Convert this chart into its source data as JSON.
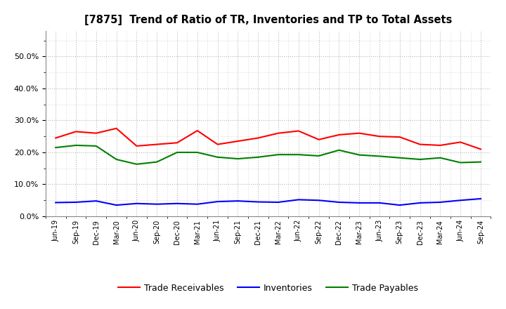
{
  "title": "[7875]  Trend of Ratio of TR, Inventories and TP to Total Assets",
  "labels": [
    "Jun-19",
    "Sep-19",
    "Dec-19",
    "Mar-20",
    "Jun-20",
    "Sep-20",
    "Dec-20",
    "Mar-21",
    "Jun-21",
    "Sep-21",
    "Dec-21",
    "Mar-22",
    "Jun-22",
    "Sep-22",
    "Dec-22",
    "Mar-23",
    "Jun-23",
    "Sep-23",
    "Dec-23",
    "Mar-24",
    "Jun-24",
    "Sep-24"
  ],
  "trade_receivables": [
    0.245,
    0.265,
    0.26,
    0.275,
    0.22,
    0.225,
    0.23,
    0.268,
    0.225,
    0.235,
    0.245,
    0.26,
    0.267,
    0.24,
    0.255,
    0.26,
    0.25,
    0.248,
    0.225,
    0.222,
    0.232,
    0.21
  ],
  "inventories": [
    0.043,
    0.044,
    0.048,
    0.035,
    0.04,
    0.038,
    0.04,
    0.038,
    0.046,
    0.048,
    0.045,
    0.044,
    0.052,
    0.05,
    0.044,
    0.042,
    0.042,
    0.035,
    0.042,
    0.044,
    0.05,
    0.055
  ],
  "trade_payables": [
    0.215,
    0.222,
    0.22,
    0.178,
    0.163,
    0.17,
    0.2,
    0.2,
    0.185,
    0.18,
    0.185,
    0.193,
    0.193,
    0.189,
    0.207,
    0.192,
    0.188,
    0.183,
    0.178,
    0.183,
    0.168,
    0.17
  ],
  "tr_color": "#ff0000",
  "inv_color": "#0000ff",
  "tp_color": "#008000",
  "background_color": "#ffffff",
  "plot_bg_color": "#ffffff",
  "grid_color": "#999999",
  "ylim": [
    0.0,
    0.58
  ],
  "yticks": [
    0.0,
    0.1,
    0.2,
    0.3,
    0.4,
    0.5
  ],
  "legend_labels": [
    "Trade Receivables",
    "Inventories",
    "Trade Payables"
  ]
}
